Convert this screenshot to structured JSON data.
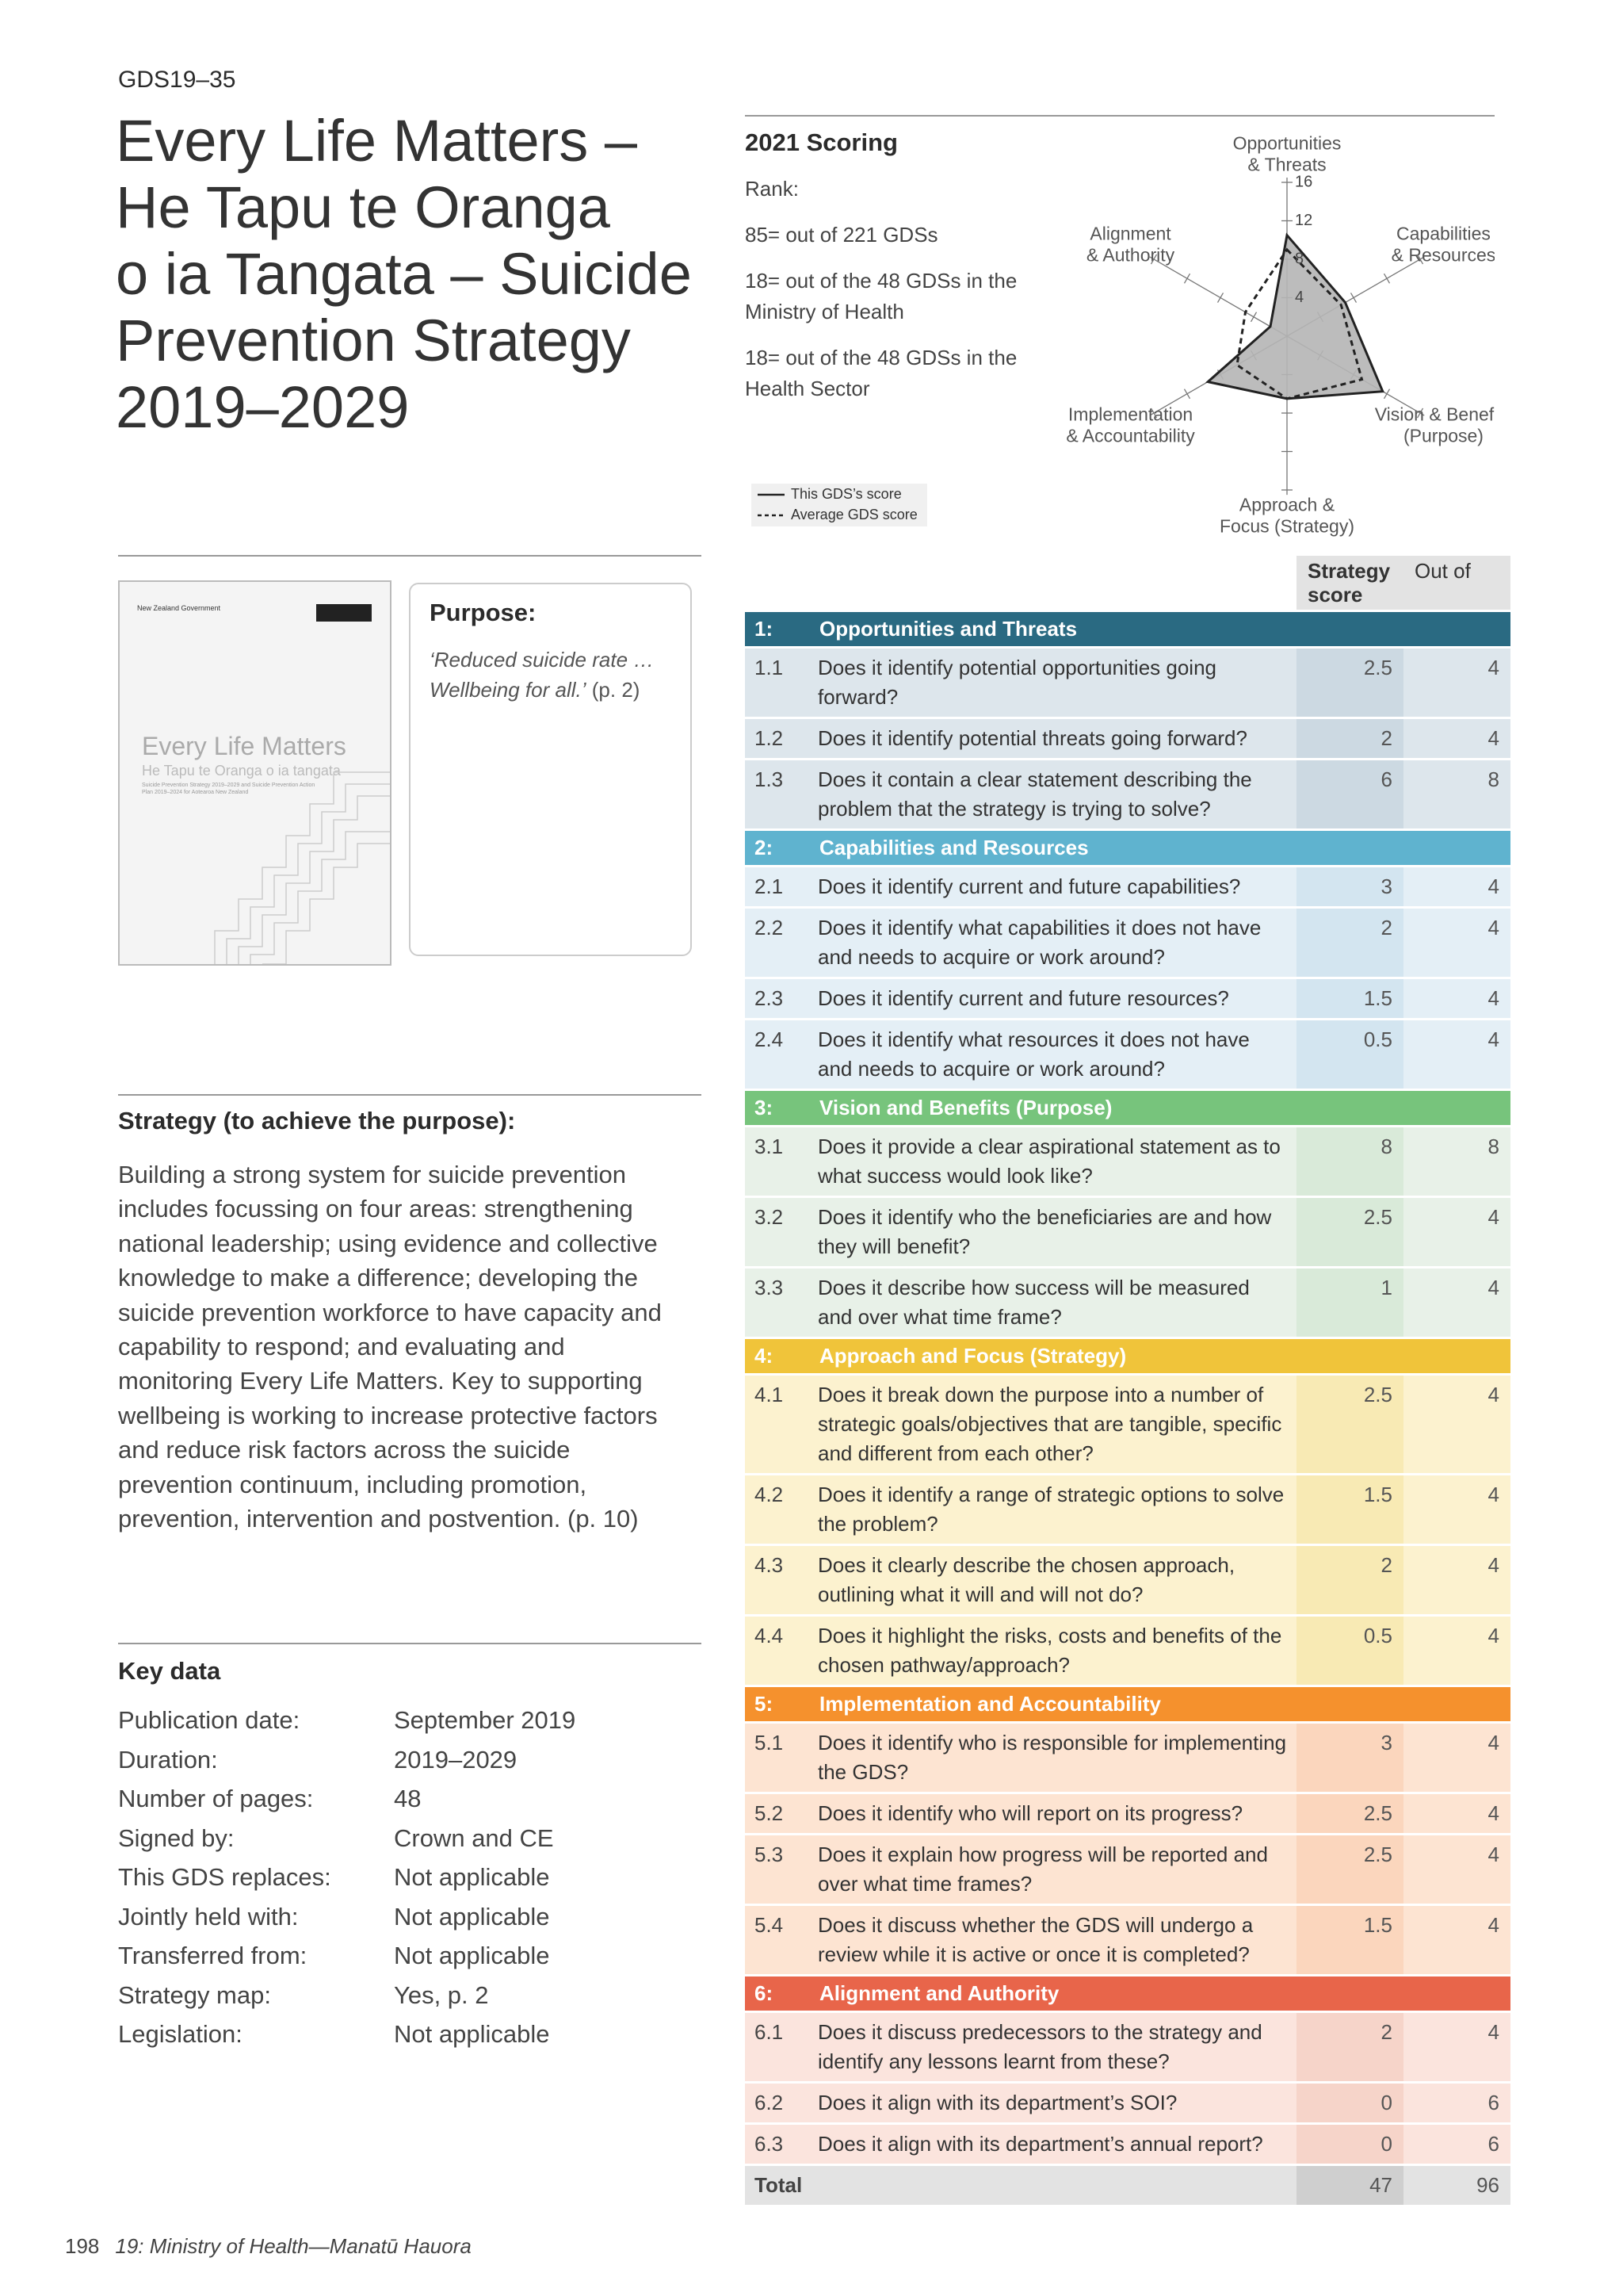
{
  "header": {
    "code": "GDS19–35",
    "title_lines": [
      "Every Life Matters –",
      "He Tapu te Oranga",
      "o ia Tangata – Suicide",
      "Prevention Strategy",
      "2019–2029"
    ]
  },
  "scoring": {
    "heading": "2021 Scoring",
    "rank_label": "Rank:",
    "ranks": [
      "85= out of 221 GDSs",
      "18= out of the 48 GDSs in the Ministry of Health",
      "18= out of the 48 GDSs in the Health Sector"
    ]
  },
  "chart_data": {
    "type": "radar",
    "axes": [
      [
        "Opportunities",
        "& Threats"
      ],
      [
        "Capabilities",
        "& Resources"
      ],
      [
        "Vision & Benefits",
        "(Purpose)"
      ],
      [
        "Approach &",
        "Focus (Strategy)"
      ],
      [
        "Implementation",
        "& Accountability"
      ],
      [
        "Alignment",
        "& Authority"
      ]
    ],
    "rlim": [
      0,
      16
    ],
    "rticks": [
      4,
      8,
      12,
      16
    ],
    "series": [
      {
        "name": "This GDS’s score",
        "color": "#222222",
        "fill": "#b5b5b5",
        "dash": false,
        "values": [
          10.5,
          7,
          11.5,
          6.5,
          9.5,
          2
        ]
      },
      {
        "name": "Average GDS score",
        "color": "#222222",
        "dash": true,
        "values": [
          9,
          6.5,
          9,
          6.5,
          6,
          5
        ]
      }
    ]
  },
  "cover": {
    "gov": "New Zealand Government",
    "title": "Every Life Matters",
    "subtitle": "He Tapu te Oranga o ia tangata",
    "small": "Suicide Prevention Strategy 2019–2029 and Suicide Prevention Action Plan 2019–2024 for Aotearoa New Zealand"
  },
  "purpose": {
    "heading": "Purpose:",
    "text": "‘Reduced suicide rate … Wellbeing for all.’",
    "ref": "(p. 2)"
  },
  "strategy": {
    "heading": "Strategy (to achieve the purpose):",
    "text": "Building a strong system for suicide prevention includes focussing on four areas: strengthening national leadership; using evidence and collective knowledge to make a difference; developing the suicide prevention workforce to have capacity and capability to respond; and evaluating and monitoring Every Life Matters. Key to supporting wellbeing is working to increase protective factors and reduce risk factors across the suicide prevention continuum, including promotion, prevention, intervention and postvention. (p. 10)"
  },
  "key_data": {
    "heading": "Key data",
    "rows": [
      [
        "Publication date:",
        "September 2019"
      ],
      [
        "Duration:",
        "2019–2029"
      ],
      [
        "Number of pages:",
        "48"
      ],
      [
        "Signed by:",
        "Crown and CE"
      ],
      [
        "This GDS replaces:",
        "Not applicable"
      ],
      [
        "Jointly held with:",
        "Not applicable"
      ],
      [
        "Transferred from:",
        "Not applicable"
      ],
      [
        "Strategy map:",
        "Yes, p. 2"
      ],
      [
        "Legislation:",
        "Not applicable"
      ]
    ]
  },
  "table": {
    "headers": [
      "Strategy score",
      "Out of"
    ],
    "sections": [
      {
        "num": "1:",
        "title": "Opportunities and Threats",
        "color": "#2a6a82",
        "row_color": "#dde6ec",
        "score_color": "#ccd9e2",
        "questions": [
          {
            "num": "1.1",
            "text": "Does it identify potential opportunities going forward?",
            "score": 2.5,
            "out_of": 4
          },
          {
            "num": "1.2",
            "text": "Does it identify potential threats going forward?",
            "score": 2,
            "out_of": 4
          },
          {
            "num": "1.3",
            "text": "Does it contain a clear statement describing the problem that the strategy is trying to solve?",
            "score": 6,
            "out_of": 8
          }
        ]
      },
      {
        "num": "2:",
        "title": "Capabilities and Resources",
        "color": "#5fb3cf",
        "row_color": "#e4eff6",
        "score_color": "#d3e5f0",
        "questions": [
          {
            "num": "2.1",
            "text": "Does it identify current and future capabilities?",
            "score": 3,
            "out_of": 4
          },
          {
            "num": "2.2",
            "text": "Does it identify what capabilities it does not have and needs to acquire or work around?",
            "score": 2,
            "out_of": 4
          },
          {
            "num": "2.3",
            "text": "Does it identify current and future resources?",
            "score": 1.5,
            "out_of": 4
          },
          {
            "num": "2.4",
            "text": "Does it identify what resources it does not have and needs to acquire or work around?",
            "score": 0.5,
            "out_of": 4
          }
        ]
      },
      {
        "num": "3:",
        "title": "Vision and Benefits (Purpose)",
        "color": "#77c47c",
        "row_color": "#e8f1e8",
        "score_color": "#d9ead9",
        "questions": [
          {
            "num": "3.1",
            "text": "Does it provide a clear aspirational statement as to what success would look like?",
            "score": 8,
            "out_of": 8
          },
          {
            "num": "3.2",
            "text": "Does it identify who the beneficiaries are and how they will benefit?",
            "score": 2.5,
            "out_of": 4
          },
          {
            "num": "3.3",
            "text": "Does it describe how success will be measured and over what time frame?",
            "score": 1,
            "out_of": 4
          }
        ]
      },
      {
        "num": "4:",
        "title": "Approach and Focus (Strategy)",
        "color": "#f0c43a",
        "row_color": "#fcf2cf",
        "score_color": "#f8eab4",
        "questions": [
          {
            "num": "4.1",
            "text": "Does it break down the purpose into a number of strategic goals/objectives that are tangible, specific and different from each other?",
            "score": 2.5,
            "out_of": 4
          },
          {
            "num": "4.2",
            "text": "Does it identify a range of strategic options to solve the problem?",
            "score": 1.5,
            "out_of": 4
          },
          {
            "num": "4.3",
            "text": "Does it clearly describe the chosen approach, outlining what it will and will not do?",
            "score": 2,
            "out_of": 4
          },
          {
            "num": "4.4",
            "text": "Does it highlight the risks, costs and benefits of the chosen pathway/approach?",
            "score": 0.5,
            "out_of": 4
          }
        ]
      },
      {
        "num": "5:",
        "title": "Implementation and Accountability",
        "color": "#f5912d",
        "row_color": "#fde4d2",
        "score_color": "#fbd6bd",
        "questions": [
          {
            "num": "5.1",
            "text": "Does it identify who is responsible for implementing the GDS?",
            "score": 3,
            "out_of": 4
          },
          {
            "num": "5.2",
            "text": "Does it identify who will report on its progress?",
            "score": 2.5,
            "out_of": 4
          },
          {
            "num": "5.3",
            "text": "Does it explain how progress will be reported and over what time frames?",
            "score": 2.5,
            "out_of": 4
          },
          {
            "num": "5.4",
            "text": "Does it discuss whether the GDS will undergo a review while it is active or once it is completed?",
            "score": 1.5,
            "out_of": 4
          }
        ]
      },
      {
        "num": "6:",
        "title": "Alignment and Authority",
        "color": "#e8654a",
        "row_color": "#fbe4dd",
        "score_color": "#f6d4c9",
        "questions": [
          {
            "num": "6.1",
            "text": "Does it discuss predecessors to the strategy and identify any lessons learnt from these?",
            "score": 2,
            "out_of": 4
          },
          {
            "num": "6.2",
            "text": "Does it align with its department’s SOI?",
            "score": 0,
            "out_of": 6
          },
          {
            "num": "6.3",
            "text": "Does it align with its department’s annual report?",
            "score": 0,
            "out_of": 6
          }
        ]
      }
    ],
    "total": {
      "label": "Total",
      "score": 47,
      "out_of": 96
    }
  },
  "footer": {
    "page": "198",
    "text": "19: Ministry of Health—Manatū Hauora"
  }
}
